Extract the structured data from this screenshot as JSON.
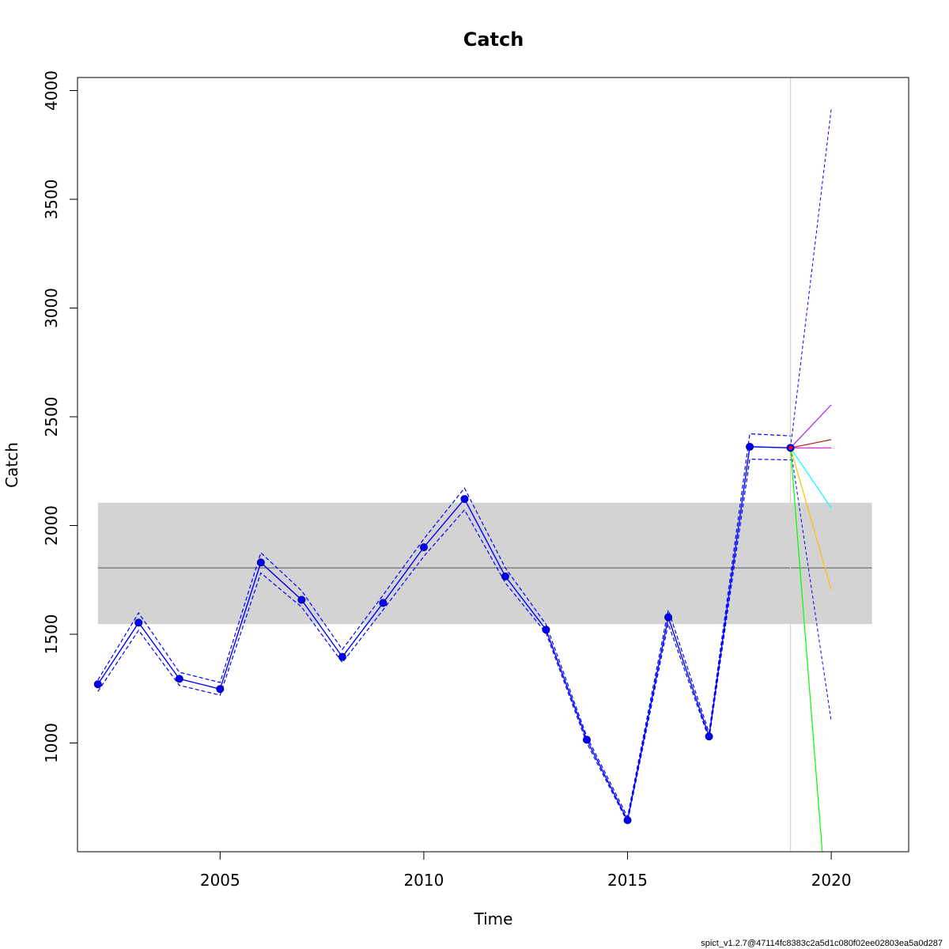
{
  "chart_data": {
    "type": "line",
    "title": "Catch",
    "xlabel": "Time",
    "ylabel": "Catch",
    "xlim": [
      2001.5,
      2021.9
    ],
    "ylim": [
      500,
      4060
    ],
    "x_ticks": [
      2005,
      2010,
      2015,
      2020
    ],
    "y_ticks": [
      1000,
      1500,
      2000,
      2500,
      3000,
      3500,
      4000
    ],
    "grid": false,
    "footer": "spict_v1.2.7@47114fc8383c2a5d1c080f02ee02803ea5a0d287",
    "reference_band": {
      "lower": 1547,
      "upper": 2105,
      "x_range": [
        2002,
        2021
      ],
      "color": "#d3d3d3"
    },
    "reference_line": {
      "value": 1805,
      "color": "#808080"
    },
    "current_time_line": {
      "x": 2019,
      "color": "#d3d3d3"
    },
    "series": [
      {
        "kind": "observed",
        "color": "#0000ff",
        "x": [
          2002,
          2003,
          2004,
          2005,
          2006,
          2007,
          2008,
          2009,
          2010,
          2011,
          2012,
          2013,
          2014,
          2015,
          2016,
          2017,
          2018,
          2019
        ],
        "values": [
          1270,
          1553,
          1295,
          1248,
          1830,
          1658,
          1396,
          1644,
          1900,
          2122,
          1766,
          1521,
          1015,
          645,
          1578,
          1030,
          2362,
          2357
        ],
        "lower": [
          1237,
          1518,
          1265,
          1220,
          1782,
          1625,
          1370,
          1612,
          1858,
          2072,
          1736,
          1505,
          1000,
          636,
          1548,
          1018,
          2305,
          2302
        ],
        "upper": [
          1290,
          1598,
          1325,
          1278,
          1875,
          1700,
          1430,
          1680,
          1938,
          2172,
          1805,
          1545,
          1030,
          660,
          1612,
          1048,
          2422,
          2412
        ]
      }
    ],
    "forecast_ci": {
      "color": "#0000ff",
      "from": [
        2019,
        2357
      ],
      "upper_end": [
        2020,
        3915
      ],
      "lower_end": [
        2020,
        1100
      ]
    },
    "scenarios": [
      {
        "color": "#a020f0",
        "from": [
          2019,
          2357
        ],
        "to": [
          2020,
          2555
        ]
      },
      {
        "color": "#b22222",
        "from": [
          2019,
          2357
        ],
        "to": [
          2020,
          2395
        ]
      },
      {
        "color": "#ff00ff",
        "from": [
          2019,
          2357
        ],
        "to": [
          2020,
          2357
        ]
      },
      {
        "color": "#00ffff",
        "from": [
          2019,
          2357
        ],
        "to": [
          2020,
          2080
        ]
      },
      {
        "color": "#ffc000",
        "from": [
          2019,
          2357
        ],
        "to": [
          2020,
          1705
        ]
      },
      {
        "color": "#00ff00",
        "from": [
          2019,
          2357
        ],
        "to": [
          2019.78,
          500
        ]
      }
    ],
    "current_point": {
      "x": 2019,
      "value": 2357,
      "color": "#ff0000"
    }
  }
}
